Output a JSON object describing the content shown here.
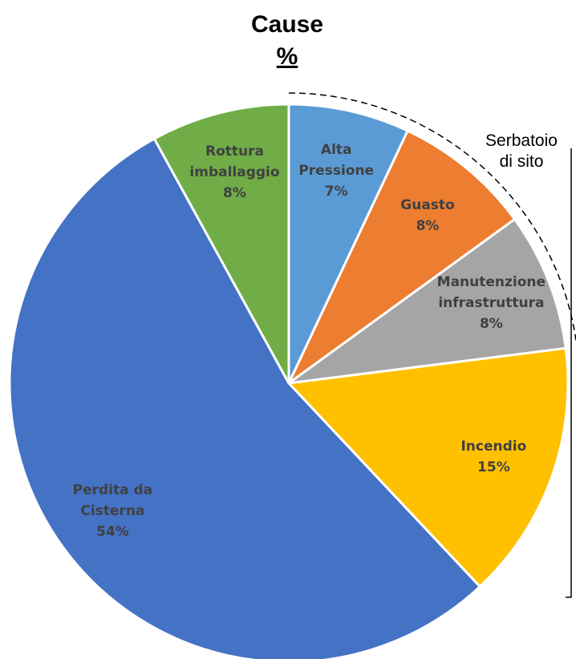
{
  "chart_data": {
    "type": "pie",
    "title": "Cause",
    "subtitle": "%",
    "categories": [
      "Alta Pressione",
      "Guasto",
      "Manutenzione infrastruttura",
      "Incendio",
      "Perdita da Cisterna",
      "Rottura imballaggio"
    ],
    "values": [
      7,
      8,
      8,
      15,
      54,
      8
    ],
    "value_labels": [
      "7%",
      "8%",
      "8%",
      "15%",
      "54%",
      "8%"
    ],
    "colors": [
      "#5b9bd5",
      "#ed7d31",
      "#a5a5a5",
      "#ffc000",
      "#4472c4",
      "#70ad47"
    ],
    "annotation": "Serbatoio di sito"
  }
}
